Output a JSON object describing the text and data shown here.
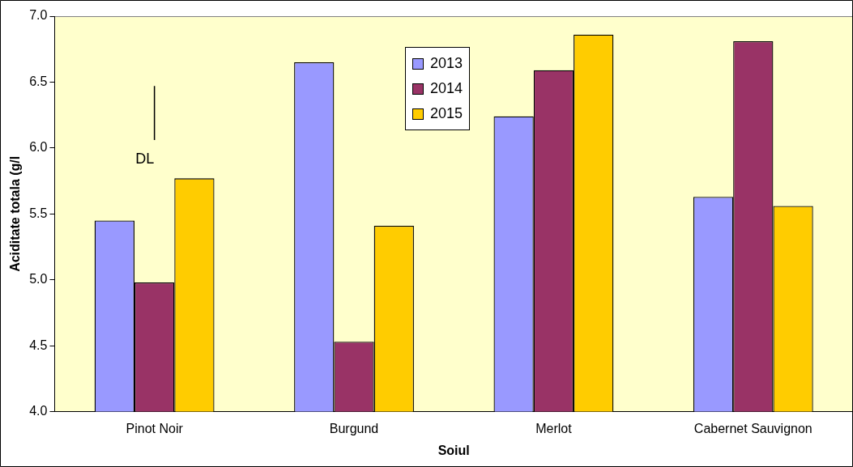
{
  "chart_data": {
    "type": "bar",
    "xlabel": "Soiul",
    "ylabel": "Aciditate totala (g/l",
    "categories": [
      "Pinot Noir",
      "Burgund",
      "Merlot",
      "Cabernet Sauvignon"
    ],
    "series": [
      {
        "name": "2013",
        "color": "#9999ff",
        "values": [
          5.45,
          6.65,
          6.24,
          5.63
        ]
      },
      {
        "name": "2014",
        "color": "#993366",
        "values": [
          4.98,
          4.53,
          6.59,
          6.81
        ]
      },
      {
        "name": "2015",
        "color": "#ffcc00",
        "values": [
          5.77,
          5.41,
          6.86,
          5.56
        ]
      },
      {
        "type": "line",
        "color": "#000000",
        "x": [
          "Pinot Noir",
          "Pinot Noir"
        ],
        "values": [
          6.06,
          6.47
        ],
        "marker": "none"
      }
    ],
    "annotations": [
      "DL"
    ],
    "ylim": [
      4.0,
      7.0
    ],
    "yticks": [
      {
        "value": 4,
        "label": "4.0"
      },
      {
        "value": 4.5,
        "label": "4.5"
      },
      {
        "value": 5,
        "label": "5.0"
      },
      {
        "value": 5.5,
        "label": "5.5"
      },
      {
        "value": 6,
        "label": "6.0"
      },
      {
        "value": 6.5,
        "label": "6.5"
      },
      {
        "value": 7,
        "label": "7.0"
      }
    ],
    "grid": false,
    "legend": "top"
  }
}
